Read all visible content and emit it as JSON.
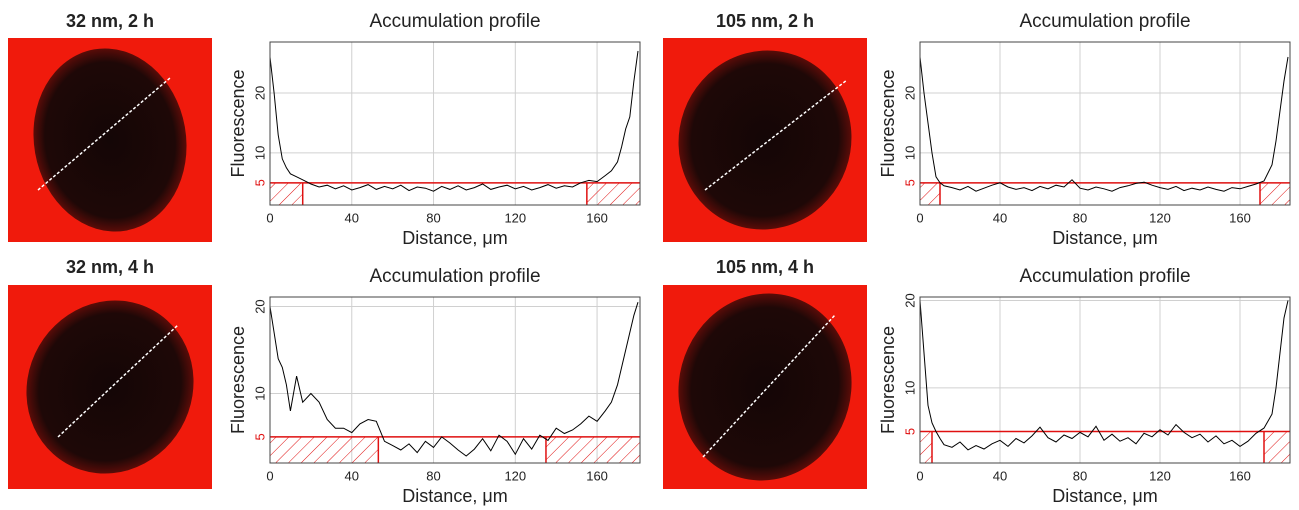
{
  "chart_data": [
    {
      "type": "line",
      "image_label": "32 nm, 2 h",
      "title": "Accumulation profile",
      "x_label": "Distance, μm",
      "y_label": "Fluorescence",
      "color": "#000000",
      "threshold": 5,
      "threshold_color": "#e01010",
      "threshold_x": [
        16,
        155
      ],
      "grid": true,
      "xlim": [
        0,
        181
      ],
      "ylim": [
        1.3,
        28.5
      ],
      "xticks": [
        0,
        40,
        80,
        120,
        160
      ],
      "yticks": [
        5,
        10,
        20
      ],
      "x": [
        0,
        2,
        4,
        6,
        8,
        10,
        13,
        16,
        20,
        24,
        28,
        32,
        36,
        40,
        44,
        48,
        52,
        56,
        60,
        64,
        68,
        72,
        76,
        80,
        84,
        88,
        92,
        96,
        100,
        104,
        108,
        112,
        116,
        120,
        124,
        128,
        132,
        136,
        140,
        144,
        148,
        152,
        156,
        160,
        164,
        167,
        170,
        172,
        174,
        176,
        178,
        180
      ],
      "values": [
        26,
        20,
        13,
        9,
        7.5,
        6.5,
        6,
        5.5,
        4.8,
        4.3,
        4.6,
        4,
        4.5,
        3.8,
        4.2,
        4.7,
        3.9,
        4.4,
        4,
        4.6,
        3.7,
        4.3,
        4.1,
        3.6,
        4.4,
        3.9,
        4.5,
        3.8,
        4.2,
        4.8,
        3.9,
        4.3,
        4.6,
        4,
        4.4,
        3.8,
        4.2,
        4.7,
        4.1,
        4.5,
        4.3,
        5,
        5.4,
        5.2,
        6.2,
        7,
        8.5,
        11,
        14,
        16,
        22,
        27
      ]
    },
    {
      "type": "line",
      "image_label": "105 nm, 2 h",
      "title": "Accumulation profile",
      "x_label": "Distance, μm",
      "y_label": "Fluorescence",
      "color": "#000000",
      "threshold": 5,
      "threshold_color": "#e01010",
      "threshold_x": [
        10,
        170
      ],
      "grid": true,
      "xlim": [
        0,
        185
      ],
      "ylim": [
        1.3,
        28.5
      ],
      "xticks": [
        0,
        40,
        80,
        120,
        160
      ],
      "yticks": [
        5,
        10,
        20
      ],
      "x": [
        0,
        2,
        4,
        6,
        8,
        10,
        12,
        16,
        20,
        24,
        28,
        32,
        36,
        40,
        44,
        48,
        52,
        56,
        60,
        64,
        68,
        72,
        76,
        80,
        84,
        88,
        92,
        96,
        100,
        104,
        108,
        112,
        116,
        120,
        124,
        128,
        132,
        136,
        140,
        144,
        148,
        152,
        156,
        160,
        164,
        168,
        172,
        176,
        178,
        180,
        182,
        184
      ],
      "values": [
        26,
        20,
        15,
        10,
        6,
        5,
        4.5,
        4.2,
        3.8,
        4.4,
        3.6,
        4.1,
        4.6,
        5,
        4.3,
        3.9,
        4.2,
        3.7,
        4.4,
        4,
        4.6,
        4.3,
        5.5,
        4.1,
        3.8,
        4.3,
        4,
        3.6,
        4.2,
        4.5,
        4.9,
        5.1,
        4.6,
        4.2,
        3.9,
        4.4,
        3.7,
        4.1,
        3.8,
        4.3,
        3.9,
        3.6,
        4.2,
        4,
        4.4,
        4.8,
        5.3,
        8,
        12,
        17,
        22,
        26
      ]
    },
    {
      "type": "line",
      "image_label": "32 nm, 4 h",
      "title": "Accumulation profile",
      "x_label": "Distance, μm",
      "y_label": "Fluorescence",
      "color": "#000000",
      "threshold": 5,
      "threshold_color": "#e01010",
      "threshold_x": [
        53,
        135
      ],
      "grid": true,
      "xlim": [
        0,
        181
      ],
      "ylim": [
        2,
        21.1
      ],
      "xticks": [
        0,
        40,
        80,
        120,
        160
      ],
      "yticks": [
        5,
        10,
        20
      ],
      "x": [
        0,
        2,
        4,
        6,
        8,
        10,
        13,
        16,
        20,
        24,
        28,
        32,
        36,
        40,
        44,
        48,
        52,
        56,
        60,
        64,
        68,
        72,
        76,
        80,
        84,
        88,
        92,
        96,
        100,
        104,
        108,
        112,
        116,
        120,
        124,
        128,
        132,
        136,
        140,
        144,
        148,
        152,
        156,
        160,
        164,
        167,
        170,
        172,
        174,
        176,
        178,
        180
      ],
      "values": [
        20,
        17,
        14,
        13,
        11,
        8,
        12,
        9,
        10,
        9,
        7,
        6,
        6,
        5.5,
        6.5,
        7,
        6.8,
        4.5,
        4,
        3.5,
        4.2,
        3.2,
        4.5,
        3.8,
        5,
        4.3,
        3.5,
        2.8,
        3.6,
        4.8,
        3.4,
        5.2,
        4.5,
        3,
        4.8,
        3.6,
        5.2,
        4.6,
        6,
        5.4,
        5.8,
        6.5,
        7.4,
        6.8,
        8,
        9,
        11,
        13,
        15,
        17,
        19,
        20.5
      ]
    },
    {
      "type": "line",
      "image_label": "105 nm, 4 h",
      "title": "Accumulation profile",
      "x_label": "Distance, μm",
      "y_label": "Fluorescence",
      "color": "#000000",
      "threshold": 5,
      "threshold_color": "#e01010",
      "threshold_x": [
        6,
        172
      ],
      "grid": true,
      "xlim": [
        0,
        185
      ],
      "ylim": [
        1.4,
        20.4
      ],
      "xticks": [
        0,
        40,
        80,
        120,
        160
      ],
      "yticks": [
        5,
        10,
        20
      ],
      "x": [
        0,
        2,
        4,
        6,
        8,
        10,
        12,
        16,
        20,
        24,
        28,
        32,
        36,
        40,
        44,
        48,
        52,
        56,
        60,
        64,
        68,
        72,
        76,
        80,
        84,
        88,
        92,
        96,
        100,
        104,
        108,
        112,
        116,
        120,
        124,
        128,
        132,
        136,
        140,
        144,
        148,
        152,
        156,
        160,
        164,
        168,
        172,
        176,
        178,
        180,
        182,
        184
      ],
      "values": [
        20,
        14,
        8,
        6,
        5,
        4.2,
        3.5,
        3.2,
        3.8,
        2.9,
        3.4,
        3,
        3.6,
        4,
        3.3,
        4.2,
        3.7,
        4.5,
        5.5,
        4.3,
        3.8,
        4.6,
        4.2,
        4.9,
        4.4,
        5.6,
        4,
        4.7,
        3.9,
        4.3,
        3.6,
        4.8,
        4.4,
        5.2,
        4.6,
        5.8,
        4.9,
        4.3,
        4.7,
        3.8,
        4.5,
        3.6,
        4,
        3.3,
        3.9,
        4.8,
        5.4,
        7,
        10,
        14,
        18,
        20
      ]
    }
  ]
}
